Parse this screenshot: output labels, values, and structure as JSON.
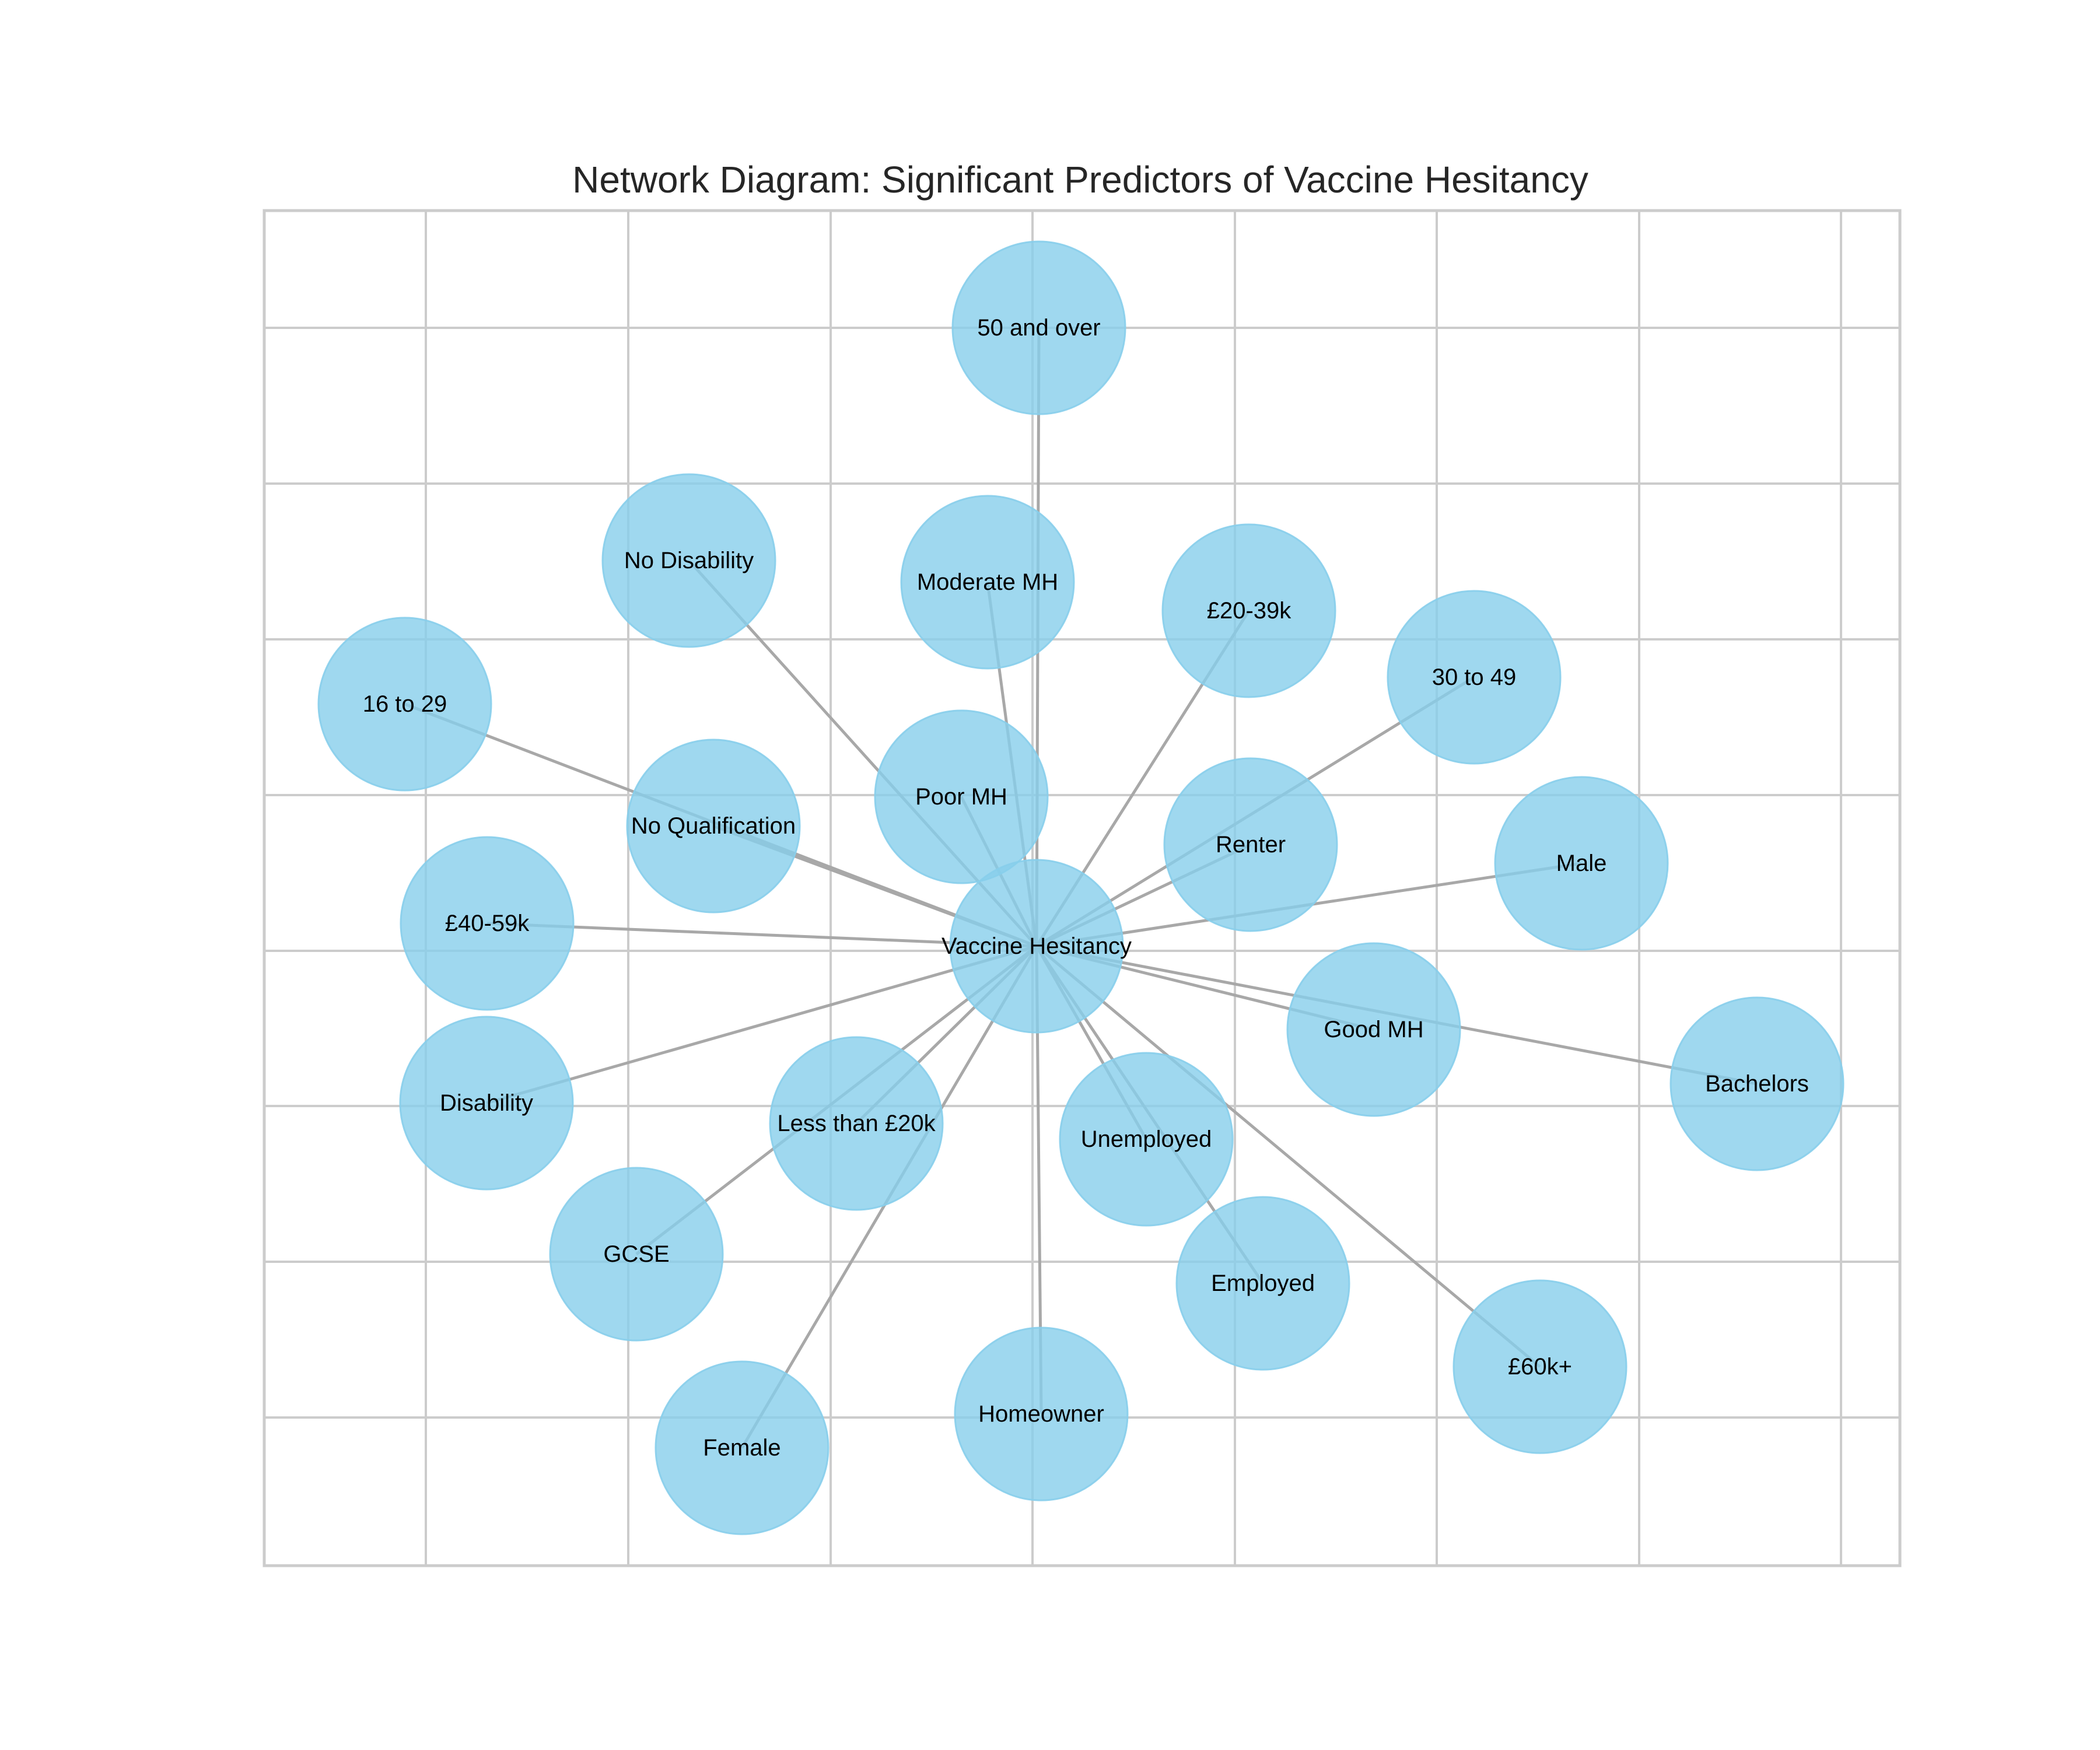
{
  "title": "Network Diagram: Significant Predictors of Vaccine Hesitancy",
  "colors": {
    "node": "#87ceeb",
    "edge": "#a8a8a8",
    "grid": "#cccccc"
  },
  "center": {
    "label": "Vaccine Hesitancy"
  },
  "nodes": [
    {
      "label": "50 and over"
    },
    {
      "label": "No Disability"
    },
    {
      "label": "Moderate MH"
    },
    {
      "label": "£20-39k"
    },
    {
      "label": "30 to 49"
    },
    {
      "label": "16 to 29"
    },
    {
      "label": "No Qualification"
    },
    {
      "label": "Poor MH"
    },
    {
      "label": "Renter"
    },
    {
      "label": "Male"
    },
    {
      "label": "£40-59k"
    },
    {
      "label": "Good MH"
    },
    {
      "label": "Bachelors"
    },
    {
      "label": "Disability"
    },
    {
      "label": "Less than £20k"
    },
    {
      "label": "Unemployed"
    },
    {
      "label": "GCSE"
    },
    {
      "label": "Employed"
    },
    {
      "label": "£60k+"
    },
    {
      "label": "Homeowner"
    },
    {
      "label": "Female"
    }
  ]
}
